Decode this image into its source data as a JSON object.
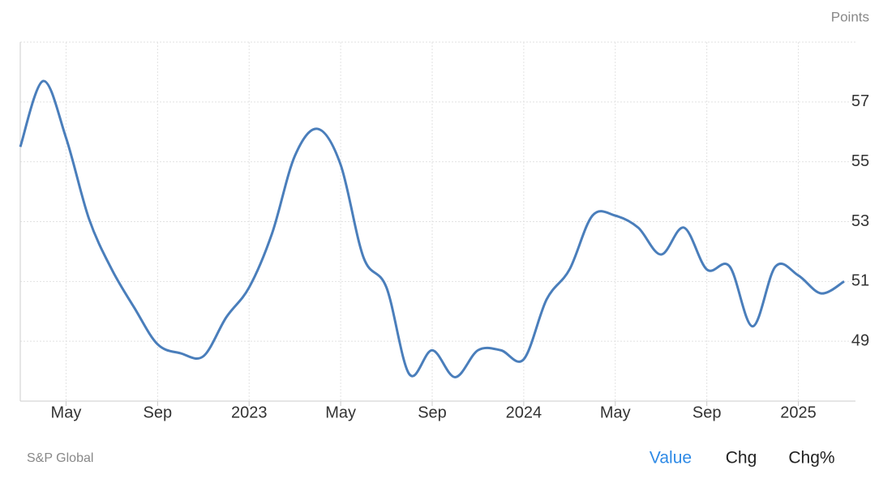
{
  "chart_data": {
    "type": "line",
    "y_axis_label": "Points",
    "categories": [
      null,
      null,
      "May",
      null,
      null,
      null,
      "Sep",
      null,
      null,
      null,
      "2023",
      null,
      null,
      null,
      "May",
      null,
      null,
      null,
      "Sep",
      null,
      null,
      null,
      "2024",
      null,
      null,
      null,
      "May",
      null,
      null,
      null,
      "Sep",
      null,
      null,
      null,
      "2025",
      null,
      null
    ],
    "series": [
      {
        "color": "#4a7ebb",
        "values": [
          55.5,
          57.7,
          55.8,
          53.1,
          51.4,
          50.1,
          48.9,
          48.6,
          48.5,
          49.8,
          50.8,
          52.6,
          55.2,
          56.1,
          54.9,
          51.8,
          50.8,
          47.9,
          48.7,
          47.8,
          48.7,
          48.7,
          48.4,
          50.4,
          51.4,
          53.2,
          53.2,
          52.8,
          51.9,
          52.8,
          51.4,
          51.5,
          49.5,
          51.5,
          51.2,
          50.6,
          51.0
        ]
      }
    ],
    "ylim": [
      47,
      59
    ],
    "yticks": [
      49,
      51,
      53,
      55,
      57
    ],
    "grid": true,
    "source": "S&P Global",
    "tabs": [
      "Value",
      "Chg",
      "Chg%"
    ],
    "active_tab_color": "#2e8ae6"
  }
}
